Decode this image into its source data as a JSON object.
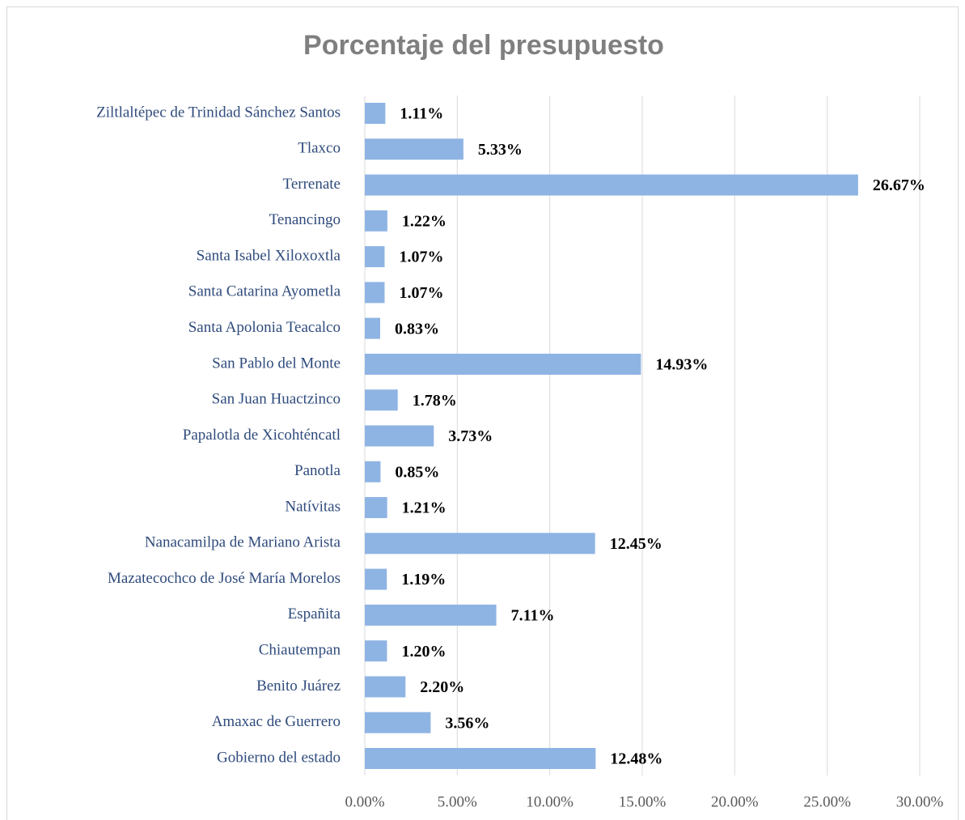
{
  "chart_data": {
    "type": "hbar",
    "title": "Porcentaje del presupuesto",
    "categories": [
      "Ziltlaltépec de Trinidad Sánchez Santos",
      "Tlaxco",
      "Terrenate",
      "Tenancingo",
      "Santa Isabel Xiloxoxtla",
      "Santa Catarina Ayometla",
      "Santa Apolonia Teacalco",
      "San Pablo del Monte",
      "San Juan Huactzinco",
      "Papalotla de Xicohténcatl",
      "Panotla",
      "Natívitas",
      "Nanacamilpa de Mariano Arista",
      "Mazatecochco de José María Morelos",
      "Españita",
      "Chiautempan",
      "Benito Juárez",
      "Amaxac de Guerrero",
      "Gobierno del estado"
    ],
    "values": [
      1.11,
      5.33,
      26.67,
      1.22,
      1.07,
      1.07,
      0.83,
      14.93,
      1.78,
      3.73,
      0.85,
      1.21,
      12.45,
      1.19,
      7.11,
      1.2,
      2.2,
      3.56,
      12.48
    ],
    "value_labels": [
      "1.11%",
      "5.33%",
      "26.67%",
      "1.22%",
      "1.07%",
      "1.07%",
      "0.83%",
      "14.93%",
      "1.78%",
      "3.73%",
      "0.85%",
      "1.21%",
      "12.45%",
      "1.19%",
      "7.11%",
      "1.20%",
      "2.20%",
      "3.56%",
      "12.48%"
    ],
    "color": "#8eb4e3",
    "xlim": [
      0,
      30
    ],
    "xticks": [
      {
        "value": 0,
        "label": "0.00%"
      },
      {
        "value": 5,
        "label": "5.00%"
      },
      {
        "value": 10,
        "label": "10.00%"
      },
      {
        "value": 15,
        "label": "15.00%"
      },
      {
        "value": 20,
        "label": "20.00%"
      },
      {
        "value": 25,
        "label": "25.00%"
      },
      {
        "value": 30,
        "label": "30.00%"
      }
    ],
    "grid": true
  }
}
